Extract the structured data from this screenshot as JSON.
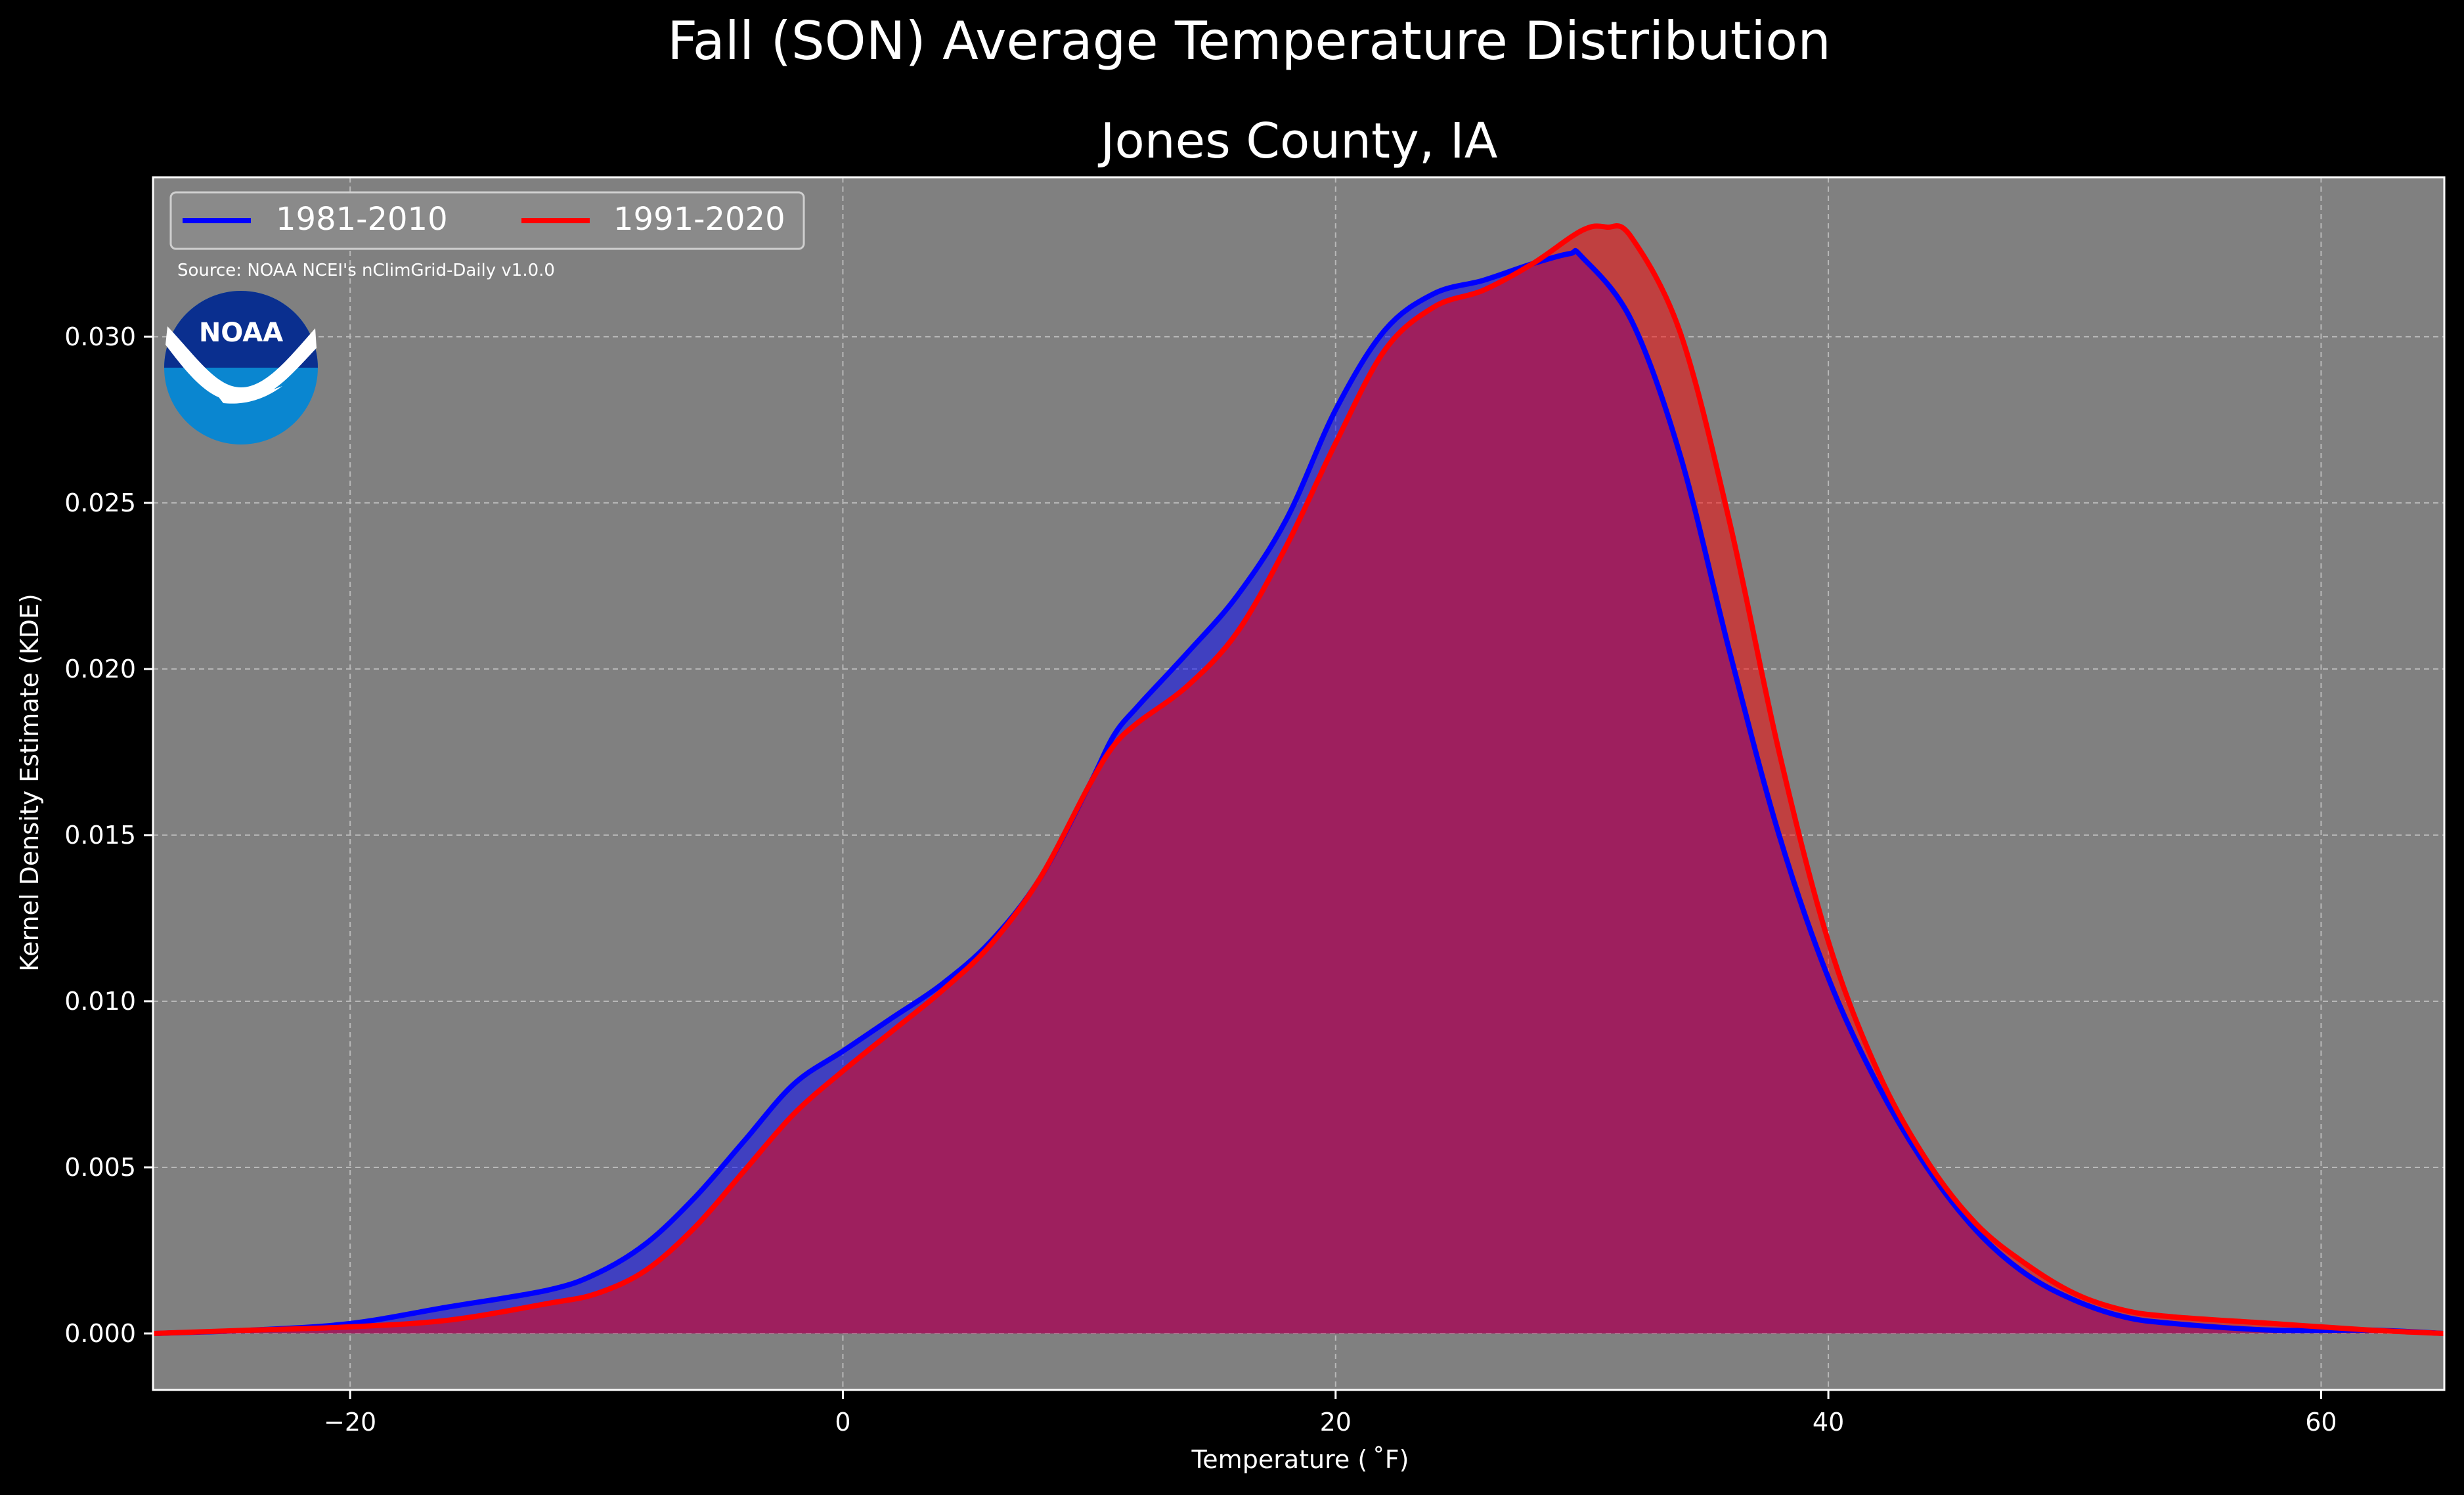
{
  "chart_data": {
    "type": "area",
    "suptitle": "Fall (SON) Average Temperature Distribution",
    "title": "Jones County, IA",
    "xlabel": "Temperature ($^\\circ$F)",
    "xlabel_display": "Temperature ( ˚F)",
    "ylabel": "Kernel Density Estimate (KDE)",
    "xlim": [
      -28,
      65
    ],
    "ylim": [
      -0.0017,
      0.0348
    ],
    "xticks": [
      -20,
      0,
      20,
      40,
      60
    ],
    "xtick_labels": [
      "−20",
      "0",
      "20",
      "40",
      "60"
    ],
    "yticks": [
      0.0,
      0.005,
      0.01,
      0.015,
      0.02,
      0.025,
      0.03
    ],
    "ytick_labels": [
      "0.000",
      "0.005",
      "0.010",
      "0.015",
      "0.020",
      "0.025",
      "0.030"
    ],
    "grid": true,
    "legend_position": "upper-left",
    "source_note": "Source: NOAA NCEI's nClimGrid-Daily v1.0.0",
    "logo_text": "NOAA",
    "colors": {
      "figure_background": "#000000",
      "axes_background": "#808080",
      "text": "#ffffff",
      "series_1981_2010": "#0000ff",
      "series_1991_2020": "#ff0000",
      "overlap_fill": "#9e1f5e",
      "logo_dark": "#0a2f8f",
      "logo_light": "#0a86d0"
    },
    "series": [
      {
        "name": "1981-2010",
        "color": "#0000ff",
        "x": [
          -28,
          -24,
          -20,
          -16,
          -12,
          -10,
          -8,
          -6,
          -4,
          -2,
          0,
          2,
          4,
          6,
          8,
          10,
          11,
          12,
          14,
          16,
          18,
          20,
          22,
          24,
          26,
          28,
          29.5,
          30,
          32,
          34,
          36,
          38,
          40,
          42,
          44,
          46,
          48,
          50,
          52,
          54,
          58,
          62,
          65
        ],
        "y": [
          0.0,
          0.0001,
          0.0003,
          0.0008,
          0.0013,
          0.0018,
          0.0027,
          0.0041,
          0.0058,
          0.0075,
          0.0085,
          0.0095,
          0.0105,
          0.0118,
          0.0137,
          0.0165,
          0.018,
          0.0189,
          0.0205,
          0.0222,
          0.0245,
          0.0278,
          0.0302,
          0.0313,
          0.0317,
          0.0322,
          0.0325,
          0.0324,
          0.0305,
          0.0264,
          0.0205,
          0.015,
          0.0107,
          0.0075,
          0.005,
          0.0031,
          0.0018,
          0.001,
          0.0005,
          0.0003,
          0.0001,
          0.0001,
          0.0
        ]
      },
      {
        "name": "1991-2020",
        "color": "#ff0000",
        "x": [
          -28,
          -24,
          -20,
          -16,
          -12,
          -10,
          -8,
          -6,
          -4,
          -2,
          0,
          2,
          4,
          6,
          8,
          10,
          11,
          12,
          14,
          16,
          18,
          20,
          22,
          24,
          26,
          28,
          30,
          31,
          32,
          34,
          36,
          38,
          40,
          42,
          44,
          46,
          48,
          50,
          52,
          54,
          58,
          62,
          65
        ],
        "y": [
          0.0,
          0.0001,
          0.0002,
          0.0004,
          0.0009,
          0.0012,
          0.0019,
          0.0032,
          0.0049,
          0.0066,
          0.0079,
          0.0091,
          0.0103,
          0.0117,
          0.0137,
          0.0165,
          0.0177,
          0.0184,
          0.0195,
          0.0211,
          0.0237,
          0.0268,
          0.0296,
          0.0309,
          0.0314,
          0.0322,
          0.0332,
          0.0333,
          0.033,
          0.0301,
          0.0244,
          0.0175,
          0.0118,
          0.0079,
          0.0052,
          0.0033,
          0.0021,
          0.0012,
          0.0007,
          0.0005,
          0.0003,
          0.0001,
          0.0
        ]
      }
    ]
  }
}
